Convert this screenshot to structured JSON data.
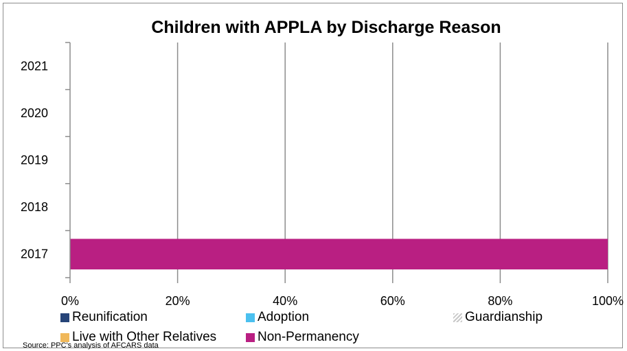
{
  "chart_data": {
    "type": "bar",
    "orientation": "horizontal",
    "stacked": true,
    "title": "Children with APPLA by Discharge Reason",
    "categories": [
      "2017",
      "2018",
      "2019",
      "2020",
      "2021"
    ],
    "series": [
      {
        "name": "Reunification",
        "color": "#264478",
        "values": [
          0,
          0,
          0,
          0,
          0
        ]
      },
      {
        "name": "Adoption",
        "color": "#4bc0ef",
        "values": [
          0,
          0,
          0,
          0,
          0
        ]
      },
      {
        "name": "Guardianship",
        "color": "#d0d0d0",
        "pattern": "diagonal-stripes",
        "values": [
          0,
          0,
          0,
          0,
          0
        ]
      },
      {
        "name": "Live with Other Relatives",
        "color": "#f0b85a",
        "values": [
          0,
          0,
          0,
          0,
          0
        ]
      },
      {
        "name": "Non-Permanency",
        "color": "#b91f82",
        "values": [
          100,
          0,
          0,
          0,
          0
        ]
      }
    ],
    "xlim": [
      0,
      100
    ],
    "x_ticks": [
      "0%",
      "20%",
      "40%",
      "60%",
      "80%",
      "100%"
    ],
    "grid": true,
    "legend": "bottom",
    "source": "Source: PPC's analysis of AFCARS data"
  }
}
